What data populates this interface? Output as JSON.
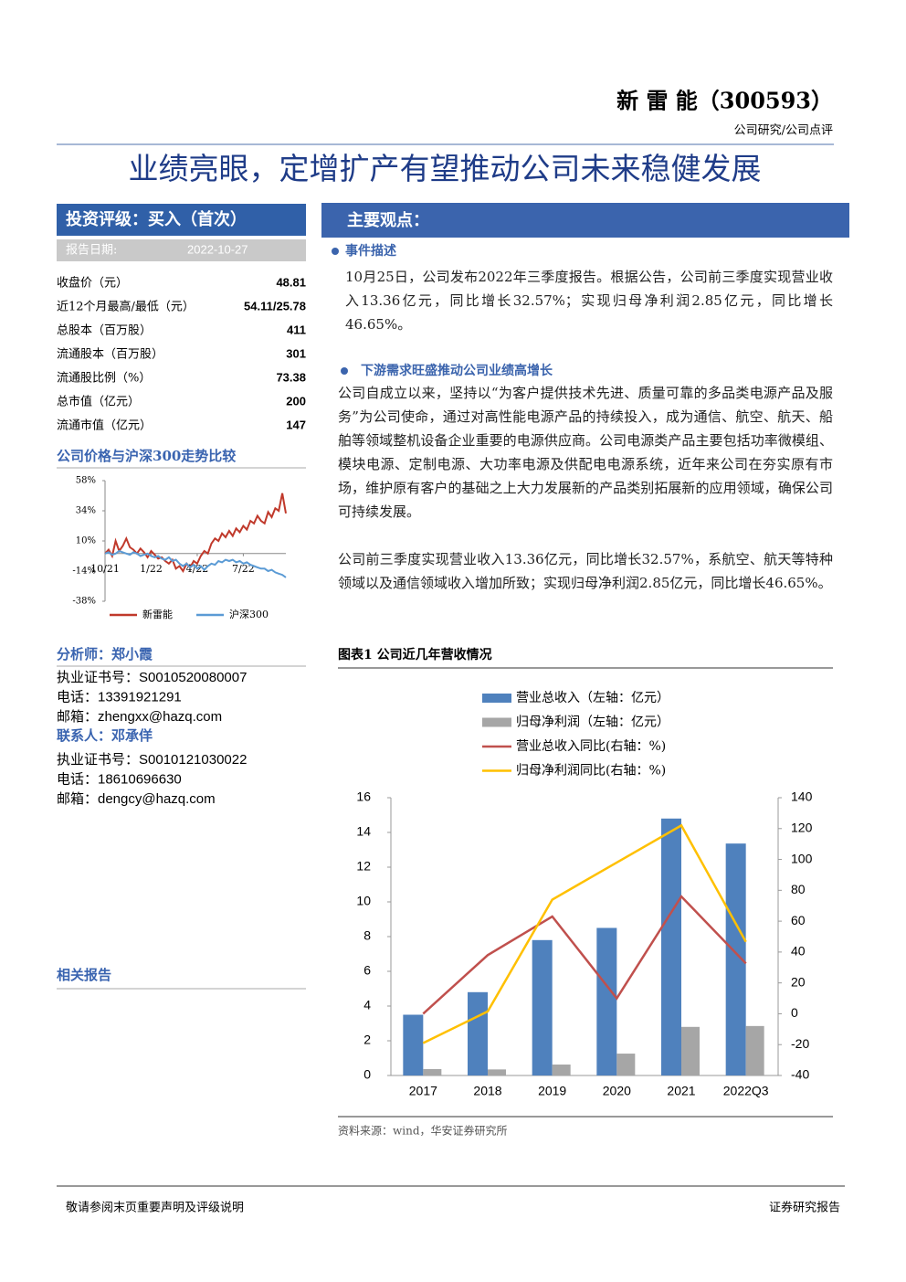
{
  "header": {
    "company": "新 雷 能（300593）",
    "category": "公司研究/公司点评"
  },
  "title": "业绩亮眼，定增扩产有望推动公司未来稳健发展",
  "sidebar": {
    "rating": "投资评级：买入（首次）",
    "report_date_label": "报告日期:",
    "report_date": "2022-10-27",
    "stats": [
      {
        "label": "收盘价（元）",
        "value": 48.81
      },
      {
        "label": "近12个月最高/最低（元）",
        "value": "54.11/25.78"
      },
      {
        "label": "总股本（百万股）",
        "value": 411
      },
      {
        "label": "流通股本（百万股）",
        "value": 301
      },
      {
        "label": "流通股比例（%）",
        "value": 73.38
      },
      {
        "label": "总市值（亿元）",
        "value": 200
      },
      {
        "label": "流通市值（亿元）",
        "value": 147
      }
    ],
    "analyst": {
      "title": "分析师：郑小霞",
      "lines": [
        "执业证书号：S0010520080007",
        "电话：13391921291",
        "邮箱：zhengxx@hazq.com"
      ]
    },
    "contact": {
      "title": "联系人：邓承佯",
      "lines": [
        "执业证书号：S0010121030022",
        "电话：18610696630",
        "邮箱：dengcy@hazq.com"
      ]
    },
    "related_reports": "相关报告"
  },
  "main": {
    "heading": "主要观点：",
    "sections": [
      {
        "title": "事件描述",
        "paragraphs": [
          "10月25日，公司发布2022年三季度报告。根据公告，公司前三季度实现营业收入13.36亿元，同比增长32.57%；实现归母净利润2.85亿元，同比增长46.65%。"
        ]
      },
      {
        "title": "下游需求旺盛推动公司业绩高增长",
        "paragraphs": [
          "公司自成立以来，坚持以“为客户提供技术先进、质量可靠的多品类电源产品及服务”为公司使命，通过对高性能电源产品的持续投入，成为通信、航空、航天、船舶等领域整机设备企业重要的电源供应商。公司电源类产品主要包括功率微模组、模块电源、定制电源、大功率电源及供配电电源系统，近年来公司在夯实原有市场，维护原有客户的基础之上大力发展新的产品类别拓展新的应用领域，确保公司可持续发展。",
          "公司前三季度实现营业收入13.36亿元，同比增长32.57%，系航空、航天等特种领域以及通信领域收入增加所致；实现归母净利润2.85亿元，同比增长46.65%。"
        ]
      }
    ]
  },
  "chart_data": [
    {
      "type": "line",
      "title": "公司价格与沪深300走势比较",
      "categories": [
        "10/21",
        null,
        null,
        null,
        null,
        null,
        null,
        null,
        null,
        null,
        null,
        null,
        null,
        "1/22",
        null,
        null,
        null,
        null,
        null,
        null,
        null,
        null,
        null,
        null,
        null,
        null,
        "4/22",
        null,
        null,
        null,
        null,
        null,
        null,
        null,
        null,
        null,
        null,
        null,
        null,
        "7/22",
        null,
        null,
        null,
        null,
        null,
        null,
        null,
        null,
        null,
        null,
        null,
        null
      ],
      "series": [
        {
          "name": "新雷能",
          "color": "#c0392b",
          "values": [
            0,
            3,
            -2,
            10,
            2,
            6,
            12,
            5,
            3,
            0,
            4,
            1,
            -3,
            2,
            -1,
            -4,
            -3,
            -6,
            -8,
            -5,
            -12,
            -10,
            -14,
            -8,
            -11,
            -6,
            -8,
            -2,
            2,
            0,
            8,
            12,
            10,
            16,
            13,
            18,
            14,
            20,
            17,
            22,
            19,
            26,
            24,
            30,
            26,
            24,
            33,
            29,
            36,
            34,
            48,
            32
          ]
        },
        {
          "name": "沪深300",
          "color": "#5b9bd5",
          "values": [
            0,
            1,
            -1,
            0,
            2,
            1,
            0,
            -1,
            1,
            0,
            -2,
            -1,
            0,
            -2,
            -3,
            -2,
            -4,
            -5,
            -3,
            -6,
            -5,
            -8,
            -10,
            -8,
            -11,
            -9,
            -12,
            -10,
            -13,
            -10,
            -8,
            -9,
            -6,
            -7,
            -5,
            -6,
            -5,
            -7,
            -6,
            -8,
            -7,
            -9,
            -10,
            -11,
            -12,
            -12,
            -14,
            -13,
            -15,
            -16,
            -17,
            -19
          ]
        }
      ],
      "ylim": [
        -38,
        58
      ],
      "yticks": [
        {
          "value": 58,
          "label": "58%"
        },
        {
          "value": 34,
          "label": "34%"
        },
        {
          "value": 10,
          "label": "10%"
        },
        {
          "value": -14,
          "label": "-14%"
        },
        {
          "value": -38,
          "label": "-38%"
        }
      ]
    },
    {
      "type": "combo",
      "title": "图表1 公司近几年营收情况",
      "source": "资料来源：wind，华安证券研究所",
      "categories": [
        "2017",
        "2018",
        "2019",
        "2020",
        "2021",
        "2022Q3"
      ],
      "series": [
        {
          "name": "营业总收入（左轴：亿元）",
          "type": "bar",
          "color": "#4f81bd",
          "values": [
            3.5,
            4.8,
            7.8,
            8.5,
            14.8,
            13.36
          ]
        },
        {
          "name": "归母净利润（左轴：亿元）",
          "type": "bar",
          "color": "#a6a6a6",
          "values": [
            0.37,
            0.35,
            0.63,
            1.26,
            2.8,
            2.85
          ]
        },
        {
          "name": "营业总收入同比(右轴：%)",
          "type": "line",
          "axis": "y2",
          "color": "#c0504d",
          "values": [
            0,
            38,
            63,
            10,
            76,
            32.57
          ]
        },
        {
          "name": "归母净利润同比(右轴：%)",
          "type": "line",
          "axis": "y2",
          "color": "#ffc000",
          "values": [
            -19,
            1.5,
            74,
            98,
            122,
            46.65
          ]
        }
      ],
      "ylim": [
        0,
        16
      ],
      "yticks": [
        0,
        2,
        4,
        6,
        8,
        10,
        12,
        14,
        16
      ],
      "y2lim": [
        -40,
        140
      ],
      "y2ticks": [
        -40,
        -20,
        0,
        20,
        40,
        60,
        80,
        100,
        120,
        140
      ]
    }
  ],
  "footer": {
    "left": "敬请参阅末页重要声明及评级说明",
    "right": "证券研究报告"
  }
}
